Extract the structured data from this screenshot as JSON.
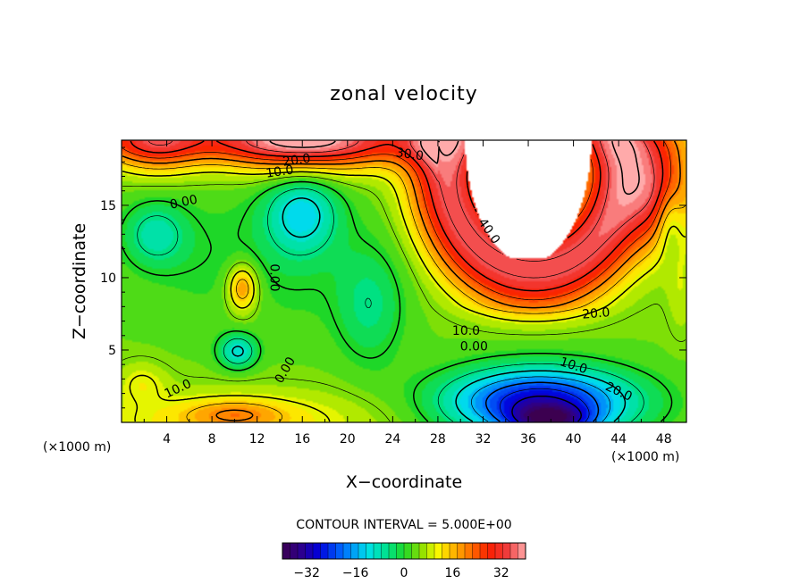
{
  "chart_data": {
    "type": "heatmap",
    "title": "zonal velocity",
    "xlabel": "X−coordinate",
    "ylabel": "Z−coordinate",
    "x_unit_left": "(×1000 m)",
    "x_unit_right": "(×1000 m)",
    "xlim": [
      0,
      50
    ],
    "ylim": [
      0,
      19.5
    ],
    "x_ticks": [
      4,
      8,
      12,
      16,
      20,
      24,
      28,
      32,
      36,
      40,
      44,
      48
    ],
    "y_ticks": [
      5,
      10,
      15
    ],
    "contour_interval_text": "CONTOUR INTERVAL = 5.000E+00",
    "colorbar": {
      "range": [
        -40,
        40
      ],
      "ticks": [
        -32,
        -16,
        0,
        16,
        32
      ],
      "tick_labels": [
        "−32",
        "−16",
        "0",
        "16",
        "32"
      ]
    },
    "contour_labels": [
      {
        "text": "20.0",
        "x": 15.5,
        "y": 18.1,
        "rot": -8
      },
      {
        "text": "10.0",
        "x": 14.0,
        "y": 17.3,
        "rot": -8
      },
      {
        "text": "0.00",
        "x": 5.5,
        "y": 15.2,
        "rot": -12
      },
      {
        "text": "30.0",
        "x": 25.5,
        "y": 18.5,
        "rot": 8
      },
      {
        "text": "40.0",
        "x": 32.5,
        "y": 13.2,
        "rot": 55
      },
      {
        "text": "0.00",
        "x": 13.5,
        "y": 10.0,
        "rot": 90
      },
      {
        "text": "20.0",
        "x": 42.0,
        "y": 7.5,
        "rot": -5
      },
      {
        "text": "10.0",
        "x": 30.5,
        "y": 6.3,
        "rot": 0
      },
      {
        "text": "0.00",
        "x": 31.2,
        "y": 5.2,
        "rot": 0
      },
      {
        "text": "0.00",
        "x": 14.5,
        "y": 3.6,
        "rot": -60
      },
      {
        "text": "10.0",
        "x": 5.0,
        "y": 2.3,
        "rot": -25
      },
      {
        "text": "10.0",
        "x": 40.0,
        "y": 3.9,
        "rot": 18
      },
      {
        "text": "20.0",
        "x": 44.0,
        "y": 2.1,
        "rot": 25
      }
    ],
    "value_features": [
      {
        "x": 16,
        "y": 19.5,
        "sx": 8,
        "sz": 2.2,
        "v": 32
      },
      {
        "x": 3,
        "y": 19.5,
        "sx": 4,
        "sz": 2.2,
        "v": 22
      },
      {
        "x": 10.7,
        "y": 9.3,
        "sx": 1.3,
        "sz": 1.6,
        "v": 20
      },
      {
        "x": 11,
        "y": 8.5,
        "sx": 3,
        "sz": 4,
        "v": 6
      },
      {
        "x": 16,
        "y": 14.5,
        "sx": 3.2,
        "sz": 2.8,
        "v": -11
      },
      {
        "x": 10.3,
        "y": 4.9,
        "sx": 1.7,
        "sz": 1.2,
        "v": -11
      },
      {
        "x": 3,
        "y": 13,
        "sx": 2.8,
        "sz": 2.2,
        "v": -7
      },
      {
        "x": 37,
        "y": 1.4,
        "sx": 8,
        "sz": 2.3,
        "v": -30
      },
      {
        "x": 38,
        "y": 0.1,
        "sx": 3.5,
        "sz": 1,
        "v": -18
      },
      {
        "x": 1.8,
        "y": 2.8,
        "sx": 2.2,
        "sz": 1.4,
        "v": 10
      },
      {
        "x": 10,
        "y": 0.6,
        "sx": 4,
        "sz": 0.9,
        "v": 12
      },
      {
        "x": 49.5,
        "y": 9,
        "sx": 1.2,
        "sz": 3,
        "v": 8
      },
      {
        "x": 48.5,
        "y": 14,
        "sx": 1.2,
        "sz": 2.5,
        "v": -6
      },
      {
        "x": 22,
        "y": 8,
        "sx": 3,
        "sz": 4,
        "v": -4
      }
    ]
  }
}
